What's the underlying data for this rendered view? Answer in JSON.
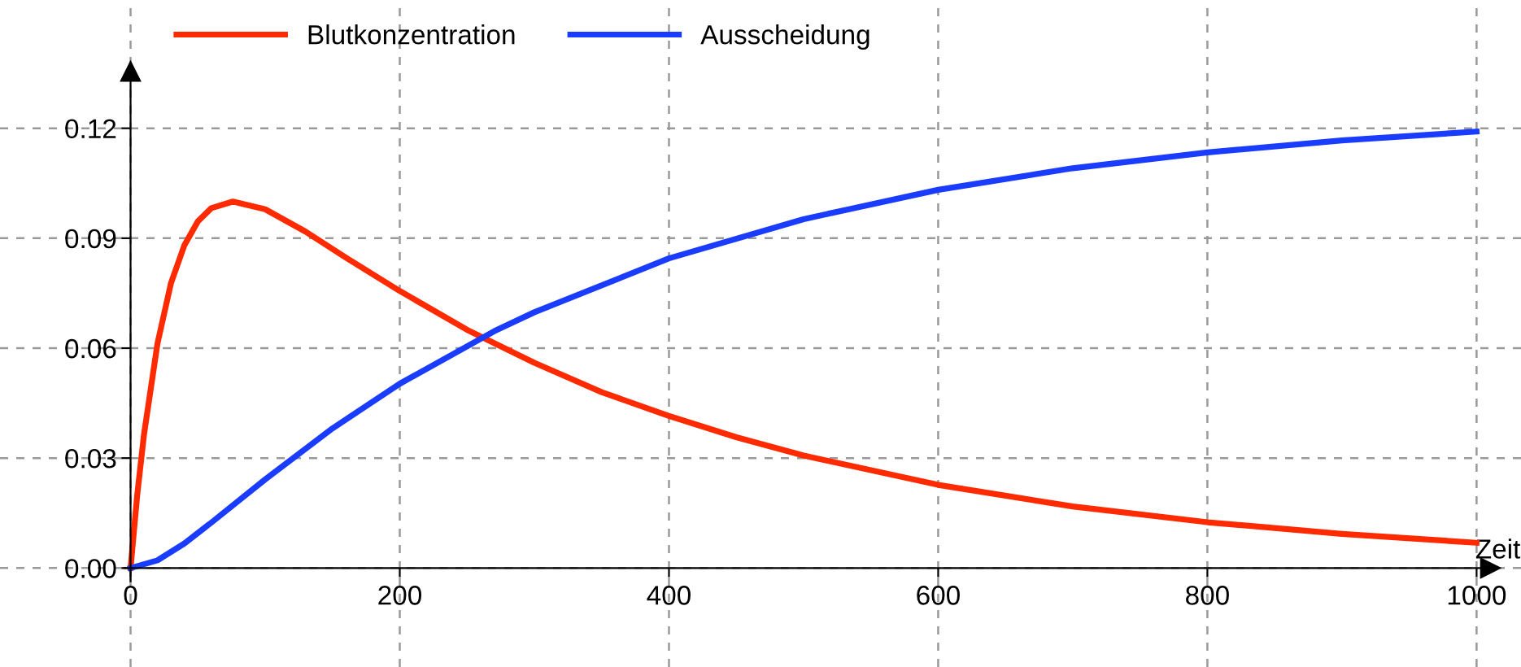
{
  "chart_data": {
    "type": "line",
    "xlabel": "Zeit",
    "xlim": [
      -97,
      1033
    ],
    "ylim": [
      -0.027,
      0.155
    ],
    "xticks": [
      0,
      200,
      400,
      600,
      800,
      1000
    ],
    "yticks": [
      {
        "value": 0,
        "label": "0.00"
      },
      0.03,
      0.06,
      0.09,
      0.12
    ],
    "grid": true,
    "legend": "top left",
    "marker": "none",
    "line_style": "solid",
    "series": [
      {
        "name": "Blutkonzentration",
        "color": "#ff2a00",
        "x": [
          0,
          5,
          10,
          20,
          30,
          40,
          50,
          60,
          76,
          100,
          130,
          160,
          200,
          250,
          300,
          350,
          400,
          450,
          500,
          600,
          700,
          800,
          900,
          1000
        ],
        "values": [
          0,
          0.0201,
          0.0365,
          0.0613,
          0.0777,
          0.0881,
          0.0946,
          0.0982,
          0.1,
          0.0979,
          0.0918,
          0.0847,
          0.0756,
          0.065,
          0.056,
          0.048,
          0.0415,
          0.0357,
          0.0307,
          0.0227,
          0.0168,
          0.0125,
          0.0093,
          0.0069
        ]
      },
      {
        "name": "Ausscheidung",
        "color": "#1a3cff",
        "x": [
          0,
          20,
          40,
          60,
          100,
          150,
          200,
          270,
          300,
          400,
          500,
          600,
          700,
          800,
          900,
          1000
        ],
        "values": [
          0,
          0.0021,
          0.0067,
          0.0124,
          0.0242,
          0.0381,
          0.0503,
          0.0646,
          0.0698,
          0.0845,
          0.0952,
          0.1032,
          0.1091,
          0.1134,
          0.1167,
          0.1191
        ]
      }
    ]
  }
}
